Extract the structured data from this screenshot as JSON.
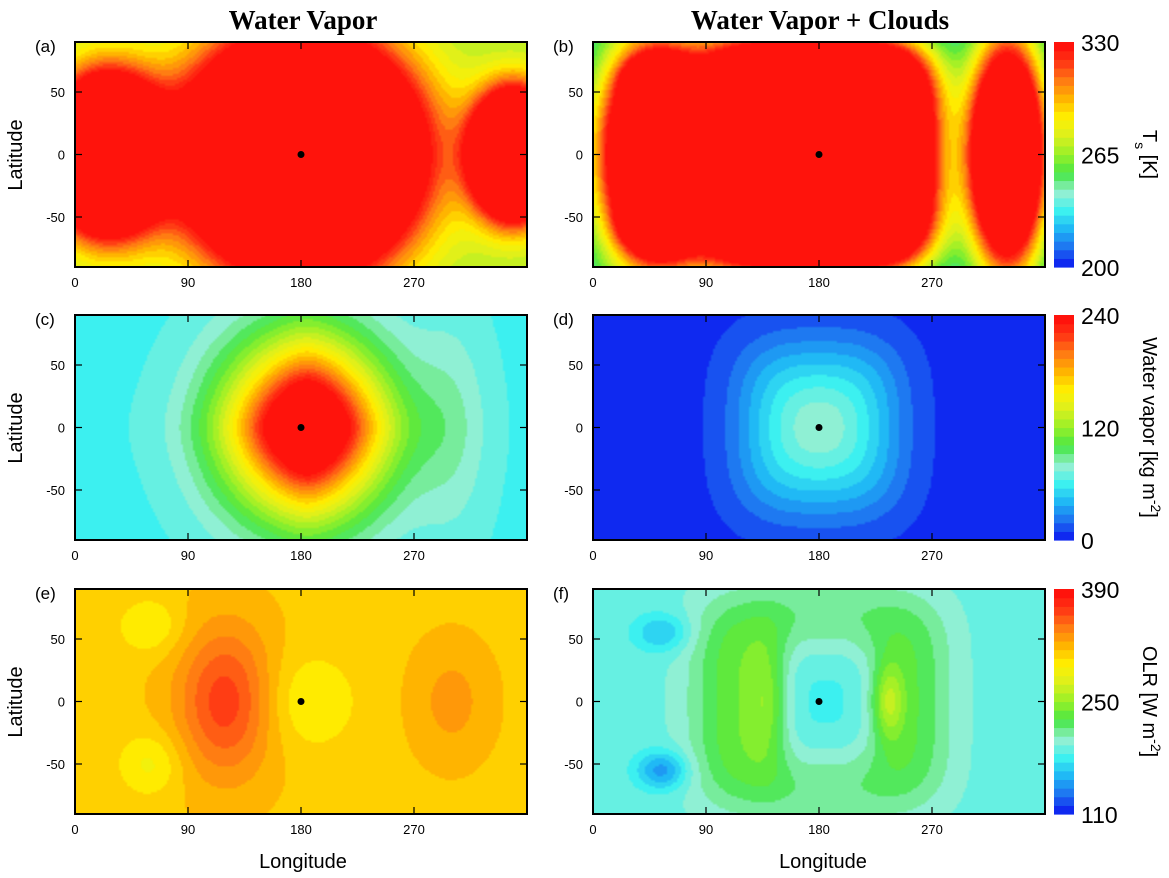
{
  "column_titles": [
    "Water Vapor",
    "Water Vapor + Clouds"
  ],
  "axis_labels": {
    "x": "Longitude",
    "y": "Latitude"
  },
  "substellar_marker": {
    "lon": 180,
    "lat": 0,
    "color": "#000000"
  },
  "chart_data": [
    {
      "panel": "(a)",
      "type": "heatmap",
      "row": 0,
      "col": 0,
      "field": "Ts",
      "xlim": [
        0,
        360
      ],
      "ylim": [
        -90,
        90
      ],
      "xticks": [
        "0",
        "90",
        "180",
        "270"
      ],
      "yticks": [
        "50",
        "0",
        "-50"
      ],
      "background_value": 265,
      "features": [
        {
          "lon": 180,
          "lat": 0,
          "value": 320,
          "rlon": 80,
          "rlat": 80,
          "falloff": 2.0
        },
        {
          "lon": 25,
          "lat": 0,
          "value": 258,
          "rlon": 40,
          "rlat": 55,
          "falloff": 2.0
        },
        {
          "lon": 350,
          "lat": 0,
          "value": 258,
          "rlon": 30,
          "rlat": 45,
          "falloff": 2.0
        }
      ]
    },
    {
      "panel": "(b)",
      "type": "heatmap",
      "row": 0,
      "col": 1,
      "field": "Ts",
      "xlim": [
        0,
        360
      ],
      "ylim": [
        -90,
        90
      ],
      "xticks": [
        "0",
        "90",
        "180",
        "270"
      ],
      "yticks": [
        "50",
        "0",
        "-50"
      ],
      "background_value": 228,
      "features": [
        {
          "lon": 180,
          "lat": 0,
          "value": 277,
          "rlon": 90,
          "rlat": 90,
          "falloff": 4.0
        },
        {
          "lon": 50,
          "lat": 0,
          "value": 213,
          "rlon": 45,
          "rlat": 90,
          "falloff": 2.0
        },
        {
          "lon": 55,
          "lat": 58,
          "value": 204,
          "rlon": 20,
          "rlat": 15,
          "falloff": 2.0
        },
        {
          "lon": 55,
          "lat": -55,
          "value": 204,
          "rlon": 22,
          "rlat": 18,
          "falloff": 2.0
        },
        {
          "lon": 330,
          "lat": 0,
          "value": 222,
          "rlon": 30,
          "rlat": 90,
          "falloff": 2.0
        }
      ]
    },
    {
      "panel": "(c)",
      "type": "heatmap",
      "row": 1,
      "col": 0,
      "field": "WV",
      "xlim": [
        0,
        360
      ],
      "ylim": [
        -90,
        90
      ],
      "xticks": [
        "0",
        "90",
        "180",
        "270"
      ],
      "yticks": [
        "50",
        "0",
        "-50"
      ],
      "background_value": 62,
      "features": [
        {
          "lon": 185,
          "lat": 0,
          "value": 240,
          "rlon": 55,
          "rlat": 60,
          "falloff": 1.6
        },
        {
          "lon": 180,
          "lat": 0,
          "value": 25,
          "rlon": 80,
          "rlat": 85,
          "falloff": 3.0
        },
        {
          "lon": 300,
          "lat": 0,
          "value": 18,
          "rlon": 30,
          "rlat": 90,
          "falloff": 2.0
        }
      ]
    },
    {
      "panel": "(d)",
      "type": "heatmap",
      "row": 1,
      "col": 1,
      "field": "WV",
      "xlim": [
        0,
        360
      ],
      "ylim": [
        -90,
        90
      ],
      "xticks": [
        "0",
        "90",
        "180",
        "270"
      ],
      "yticks": [
        "50",
        "0",
        "-50"
      ],
      "background_value": 6,
      "features": [
        {
          "lon": 180,
          "lat": 0,
          "value": 55,
          "rlon": 65,
          "rlat": 70,
          "falloff": 3.0
        },
        {
          "lon": 180,
          "lat": 0,
          "value": 20,
          "rlon": 35,
          "rlat": 35,
          "falloff": 2.0
        }
      ]
    },
    {
      "panel": "(e)",
      "type": "heatmap",
      "row": 2,
      "col": 0,
      "field": "OLR",
      "xlim": [
        0,
        360
      ],
      "ylim": [
        -90,
        90
      ],
      "xticks": [
        "0",
        "90",
        "180",
        "270"
      ],
      "yticks": [
        "50",
        "0",
        "-50"
      ],
      "background_value": 312,
      "features": [
        {
          "lon": 120,
          "lat": 0,
          "value": 52,
          "rlon": 38,
          "rlat": 60,
          "falloff": 2.0
        },
        {
          "lon": 185,
          "lat": 0,
          "value": -20,
          "rlon": 38,
          "rlat": 38,
          "falloff": 2.0
        },
        {
          "lon": 60,
          "lat": 60,
          "value": -20,
          "rlon": 25,
          "rlat": 22,
          "falloff": 2.0
        },
        {
          "lon": 60,
          "lat": -50,
          "value": -22,
          "rlon": 25,
          "rlat": 25,
          "falloff": 2.0
        },
        {
          "lon": 300,
          "lat": 0,
          "value": 18,
          "rlon": 30,
          "rlat": 45,
          "falloff": 2.0
        }
      ]
    },
    {
      "panel": "(f)",
      "type": "heatmap",
      "row": 2,
      "col": 1,
      "field": "OLR",
      "xlim": [
        0,
        360
      ],
      "ylim": [
        -90,
        90
      ],
      "xticks": [
        "0",
        "90",
        "180",
        "270"
      ],
      "yticks": [
        "50",
        "0",
        "-50"
      ],
      "background_value": 192,
      "features": [
        {
          "lon": 180,
          "lat": 0,
          "value": 64,
          "rlon": 95,
          "rlat": 85,
          "falloff": 4.0
        },
        {
          "lon": 185,
          "lat": 0,
          "value": -72,
          "rlon": 52,
          "rlat": 62,
          "falloff": 3.0
        },
        {
          "lon": 235,
          "lat": 0,
          "value": 45,
          "rlon": 12,
          "rlat": 30,
          "falloff": 2.0
        },
        {
          "lon": 140,
          "lat": 0,
          "value": 30,
          "rlon": 15,
          "rlat": 50,
          "falloff": 2.0
        },
        {
          "lon": 55,
          "lat": 55,
          "value": -30,
          "rlon": 22,
          "rlat": 15,
          "falloff": 2.0
        },
        {
          "lon": 55,
          "lat": -55,
          "value": -45,
          "rlon": 20,
          "rlat": 15,
          "falloff": 2.0
        }
      ]
    }
  ],
  "colorbars": [
    {
      "row": 0,
      "field": "Ts",
      "min": 200,
      "max": 330,
      "ticks": [
        330,
        265,
        200
      ],
      "label_main": "T",
      "label_sub": "s",
      "label_rest": " [K]"
    },
    {
      "row": 1,
      "field": "WV",
      "min": 0,
      "max": 240,
      "ticks": [
        240,
        120,
        0
      ],
      "label_main": "Water vapor [kg m",
      "label_sup": "-2",
      "label_rest": "]"
    },
    {
      "row": 2,
      "field": "OLR",
      "min": 110,
      "max": 390,
      "ticks": [
        390,
        250,
        110
      ],
      "label_main": "OLR [W m",
      "label_sup": "-2",
      "label_rest": "]"
    }
  ],
  "colormap": [
    "#0a14f0",
    "#1e6ef0",
    "#1eb4f5",
    "#3cf0f0",
    "#96f0d2",
    "#46e646",
    "#96f028",
    "#dcf01e",
    "#fff000",
    "#ffb400",
    "#ff7814",
    "#ff3214",
    "#ff0a0a"
  ],
  "n_levels": 26
}
